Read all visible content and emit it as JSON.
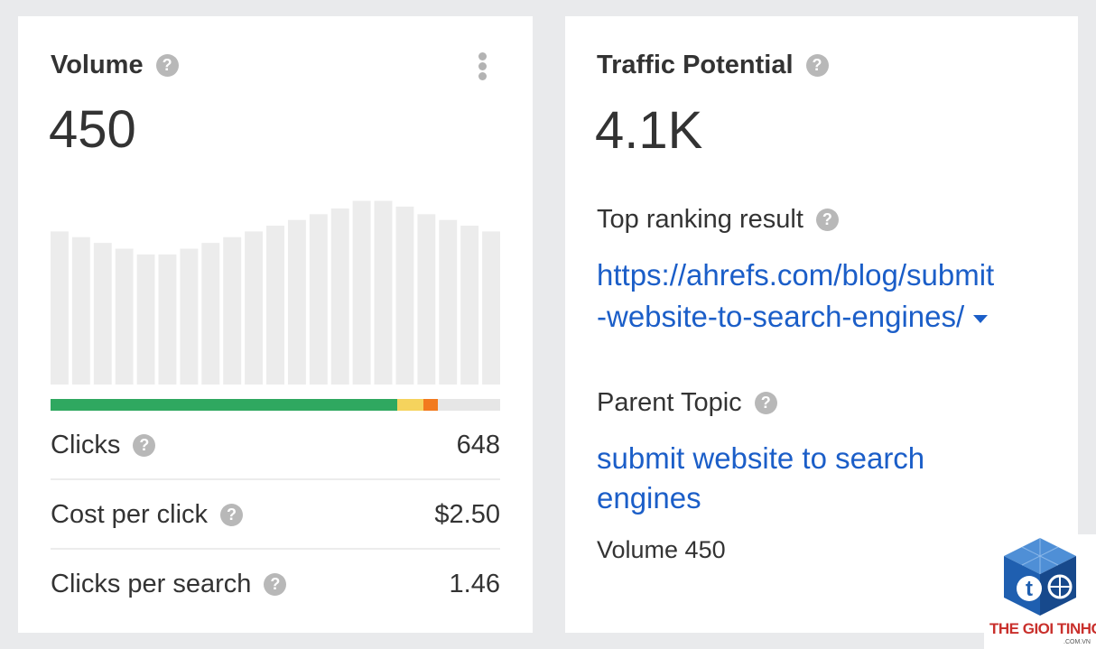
{
  "volume_card": {
    "title": "Volume",
    "help_icon": "?",
    "value": "450",
    "menu_icon": "kebab-vertical-icon",
    "trend": [
      0.8,
      0.77,
      0.74,
      0.71,
      0.68,
      0.68,
      0.71,
      0.74,
      0.77,
      0.8,
      0.83,
      0.86,
      0.89,
      0.92,
      0.96,
      0.96,
      0.93,
      0.89,
      0.86,
      0.83,
      0.8
    ],
    "click_split": [
      {
        "name": "organic",
        "fraction": 0.771,
        "color": "#2fa860"
      },
      {
        "name": "paid",
        "fraction": 0.058,
        "color": "#f5d35d"
      },
      {
        "name": "other",
        "fraction": 0.032,
        "color": "#f27a1e"
      },
      {
        "name": "no-clicks",
        "fraction": 0.139,
        "color": "#e6e6e6"
      }
    ],
    "metrics": [
      {
        "label": "Clicks",
        "value": "648"
      },
      {
        "label": "Cost per click",
        "value": "$2.50"
      },
      {
        "label": "Clicks per search",
        "value": "1.46"
      }
    ]
  },
  "traffic_card": {
    "title": "Traffic Potential",
    "help_icon": "?",
    "value": "4.1K",
    "top_ranking": {
      "label": "Top ranking result",
      "url_line1": "https://ahrefs.com/blog/submit",
      "url_line2": "-website-to-search-engines/"
    },
    "parent_topic": {
      "label": "Parent Topic",
      "link_line1": "submit website to search",
      "link_line2": "engines",
      "volume": "Volume 450"
    }
  },
  "watermark": {
    "brand": "THE GIOI TINHOC",
    "domain": ".COM.VN",
    "logo_letter": "t"
  },
  "colors": {
    "link": "#1b5ec8",
    "bar": "#ececec",
    "help_icon": "#b8b8b8"
  }
}
